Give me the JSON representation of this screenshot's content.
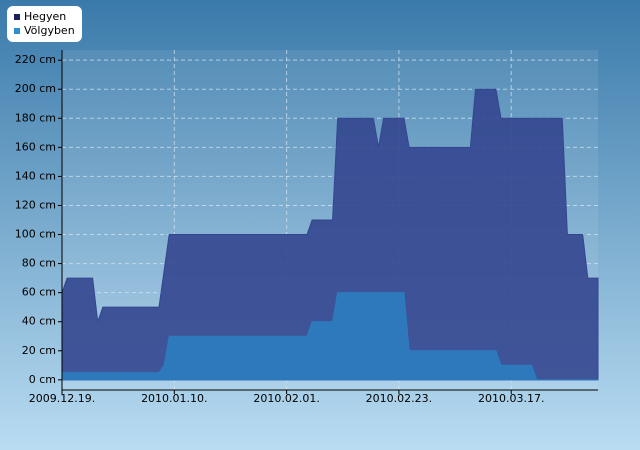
{
  "chart_data": {
    "type": "area",
    "x": [
      "2009-12-19",
      "2009-12-20",
      "2009-12-25",
      "2009-12-26",
      "2009-12-27",
      "2010-01-07",
      "2010-01-08",
      "2010-01-09",
      "2010-02-05",
      "2010-02-06",
      "2010-02-10",
      "2010-02-11",
      "2010-02-18",
      "2010-02-19",
      "2010-02-20",
      "2010-02-24",
      "2010-02-25",
      "2010-03-09",
      "2010-03-10",
      "2010-03-14",
      "2010-03-15",
      "2010-03-21",
      "2010-03-22",
      "2010-03-27",
      "2010-03-28",
      "2010-03-31",
      "2010-04-01",
      "2010-04-03"
    ],
    "series": [
      {
        "name": "Hegyen",
        "color": "#34468f",
        "values": [
          60,
          70,
          70,
          40,
          50,
          50,
          75,
          100,
          100,
          110,
          110,
          180,
          180,
          160,
          180,
          180,
          160,
          160,
          200,
          200,
          180,
          180,
          180,
          180,
          100,
          100,
          70,
          70
        ]
      },
      {
        "name": "Völgyben",
        "color": "#2c7cc0",
        "values": [
          5,
          5,
          5,
          5,
          5,
          5,
          10,
          30,
          30,
          40,
          40,
          60,
          60,
          60,
          60,
          60,
          20,
          20,
          20,
          20,
          10,
          10,
          0,
          0,
          0,
          0,
          0,
          0
        ]
      }
    ],
    "xlim": [
      "2009-12-19",
      "2010-04-03"
    ],
    "xticks": [
      {
        "value": "2009-12-19",
        "label": "2009.12.19."
      },
      {
        "value": "2010-01-10",
        "label": "2010.01.10."
      },
      {
        "value": "2010-02-01",
        "label": "2010.02.01."
      },
      {
        "value": "2010-02-23",
        "label": "2010.02.23."
      },
      {
        "value": "2010-03-17",
        "label": "2010.03.17."
      }
    ],
    "ylim": [
      -7,
      227
    ],
    "yticks": [
      {
        "value": 0,
        "label": "0 cm"
      },
      {
        "value": 20,
        "label": "20 cm"
      },
      {
        "value": 40,
        "label": "40 cm"
      },
      {
        "value": 60,
        "label": "60 cm"
      },
      {
        "value": 80,
        "label": "80 cm"
      },
      {
        "value": 100,
        "label": "100 cm"
      },
      {
        "value": 120,
        "label": "120 cm"
      },
      {
        "value": 140,
        "label": "140 cm"
      },
      {
        "value": 160,
        "label": "160 cm"
      },
      {
        "value": 180,
        "label": "180 cm"
      },
      {
        "value": 200,
        "label": "200 cm"
      },
      {
        "value": 220,
        "label": "220 cm"
      }
    ],
    "grid": true,
    "legend": "top-left",
    "legend_colors": [
      "#1b1f5e",
      "#2e8ed0"
    ]
  }
}
